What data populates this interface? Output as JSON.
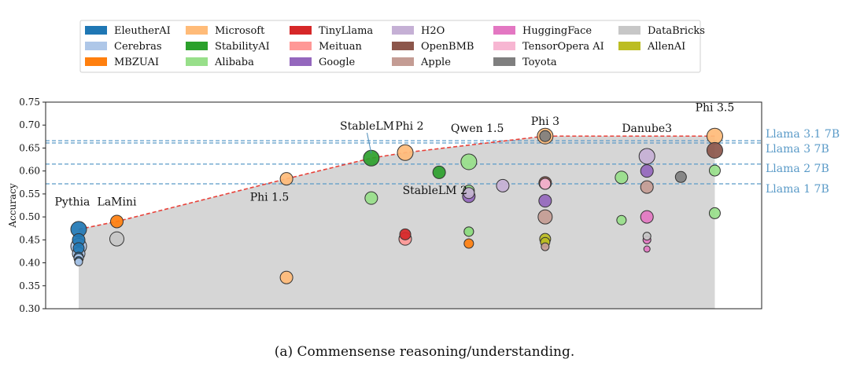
{
  "caption": "(a) Commensense reasoning/understanding.",
  "legend": [
    {
      "name": "EleutherAI",
      "color": "#1f77b4"
    },
    {
      "name": "Cerebras",
      "color": "#aec7e8"
    },
    {
      "name": "MBZUAI",
      "color": "#ff7f0e"
    },
    {
      "name": "Microsoft",
      "color": "#ffbb78"
    },
    {
      "name": "StabilityAI",
      "color": "#2ca02c"
    },
    {
      "name": "Alibaba",
      "color": "#98df8a"
    },
    {
      "name": "TinyLlama",
      "color": "#d62728"
    },
    {
      "name": "Meituan",
      "color": "#ff9896"
    },
    {
      "name": "Google",
      "color": "#9467bd"
    },
    {
      "name": "H2O",
      "color": "#c5b0d5"
    },
    {
      "name": "OpenBMB",
      "color": "#8c564b"
    },
    {
      "name": "Apple",
      "color": "#c49c94"
    },
    {
      "name": "HuggingFace",
      "color": "#e377c2"
    },
    {
      "name": "TensorOpera AI",
      "color": "#f7b6d2"
    },
    {
      "name": "Toyota",
      "color": "#7f7f7f"
    },
    {
      "name": "DataBricks",
      "color": "#c7c7c7"
    },
    {
      "name": "AllenAI",
      "color": "#bcbd22"
    }
  ],
  "chart_data": {
    "type": "scatter",
    "title": "",
    "xlabel": "",
    "ylabel": "Accuracy",
    "ylim": [
      0.3,
      0.75
    ],
    "yticks": [
      "0.30",
      "0.35",
      "0.40",
      "0.45",
      "0.50",
      "0.55",
      "0.60",
      "0.65",
      "0.70",
      "0.75"
    ],
    "xlim": [
      0,
      15.4
    ],
    "xticks_visible": false,
    "grid": false,
    "legend_position": "top",
    "frontier": {
      "color": "#e8423a",
      "points": [
        [
          0,
          0.473
        ],
        [
          0.9,
          0.49
        ],
        [
          4.9,
          0.583
        ],
        [
          6.9,
          0.628
        ],
        [
          7.7,
          0.64
        ],
        [
          11.0,
          0.676
        ],
        [
          15.0,
          0.676
        ]
      ]
    },
    "reference_lines": [
      {
        "label": "Llama 3.1 7B",
        "y": 0.666
      },
      {
        "label": "Llama 3 7B",
        "y": 0.661
      },
      {
        "label": "Llama 2 7B",
        "y": 0.615
      },
      {
        "label": "Llama 1 7B",
        "y": 0.572
      }
    ],
    "reference_color": "#5b9bc8",
    "annotations": [
      {
        "text": "Pythia",
        "x": -0.15,
        "y": 0.525
      },
      {
        "text": "LaMini",
        "x": 0.9,
        "y": 0.525
      },
      {
        "text": "Phi 1.5",
        "x": 4.5,
        "y": 0.535
      },
      {
        "text": "StableLM",
        "x": 6.8,
        "y": 0.69
      },
      {
        "text": "Phi 2",
        "x": 7.8,
        "y": 0.69
      },
      {
        "text": "Qwen 1.5",
        "x": 9.4,
        "y": 0.685
      },
      {
        "text": "StableLM 2",
        "x": 8.4,
        "y": 0.55
      },
      {
        "text": "Phi 3",
        "x": 11.0,
        "y": 0.7
      },
      {
        "text": "Danube3",
        "x": 13.4,
        "y": 0.685
      },
      {
        "text": "Phi 3.5",
        "x": 15.0,
        "y": 0.73
      }
    ],
    "points": [
      {
        "org": "Microsoft",
        "x": 4.9,
        "y": 0.583,
        "size": 8
      },
      {
        "org": "Microsoft",
        "x": 4.9,
        "y": 0.368,
        "size": 8
      },
      {
        "org": "Microsoft",
        "x": 7.7,
        "y": 0.64,
        "size": 10
      },
      {
        "org": "Microsoft",
        "x": 11.0,
        "y": 0.676,
        "size": 10
      },
      {
        "org": "Microsoft",
        "x": 15.0,
        "y": 0.676,
        "size": 10
      },
      {
        "org": "EleutherAI",
        "x": 0,
        "y": 0.405,
        "size": 5
      },
      {
        "org": "EleutherAI",
        "x": 0,
        "y": 0.413,
        "size": 6
      },
      {
        "org": "EleutherAI",
        "x": 0,
        "y": 0.432,
        "size": 7
      },
      {
        "org": "EleutherAI",
        "x": 0,
        "y": 0.45,
        "size": 8
      },
      {
        "org": "EleutherAI",
        "x": 0,
        "y": 0.473,
        "size": 10
      },
      {
        "org": "Cerebras",
        "x": 0,
        "y": 0.402,
        "size": 5
      },
      {
        "org": "Cerebras",
        "x": 0,
        "y": 0.41,
        "size": 6
      },
      {
        "org": "Cerebras",
        "x": 0,
        "y": 0.42,
        "size": 8
      },
      {
        "org": "Cerebras",
        "x": 0,
        "y": 0.436,
        "size": 10
      },
      {
        "org": "MBZUAI",
        "x": 0.9,
        "y": 0.49,
        "size": 8
      },
      {
        "org": "MBZUAI",
        "x": 9.2,
        "y": 0.442,
        "size": 6
      },
      {
        "org": "DataBricks",
        "x": 0.9,
        "y": 0.452,
        "size": 9
      },
      {
        "org": "StabilityAI",
        "x": 6.9,
        "y": 0.628,
        "size": 10
      },
      {
        "org": "StabilityAI",
        "x": 8.5,
        "y": 0.597,
        "size": 8
      },
      {
        "org": "StabilityAI",
        "x": 9.2,
        "y": 0.468,
        "size": 6
      },
      {
        "org": "Alibaba",
        "x": 6.9,
        "y": 0.541,
        "size": 8
      },
      {
        "org": "Alibaba",
        "x": 9.2,
        "y": 0.62,
        "size": 10
      },
      {
        "org": "Alibaba",
        "x": 9.2,
        "y": 0.557,
        "size": 7
      },
      {
        "org": "Alibaba",
        "x": 9.2,
        "y": 0.468,
        "size": 6
      },
      {
        "org": "Alibaba",
        "x": 12.8,
        "y": 0.586,
        "size": 8
      },
      {
        "org": "Alibaba",
        "x": 12.8,
        "y": 0.493,
        "size": 6
      },
      {
        "org": "Alibaba",
        "x": 15.0,
        "y": 0.601,
        "size": 7
      },
      {
        "org": "Alibaba",
        "x": 15.0,
        "y": 0.508,
        "size": 7
      },
      {
        "org": "TinyLlama",
        "x": 7.7,
        "y": 0.462,
        "size": 7
      },
      {
        "org": "Meituan",
        "x": 7.7,
        "y": 0.452,
        "size": 8
      },
      {
        "org": "Google",
        "x": 9.2,
        "y": 0.545,
        "size": 8
      },
      {
        "org": "Google",
        "x": 11.0,
        "y": 0.535,
        "size": 8
      },
      {
        "org": "Google",
        "x": 13.4,
        "y": 0.6,
        "size": 8
      },
      {
        "org": "H2O",
        "x": 9.2,
        "y": 0.552,
        "size": 7
      },
      {
        "org": "H2O",
        "x": 10.0,
        "y": 0.568,
        "size": 8
      },
      {
        "org": "H2O",
        "x": 13.4,
        "y": 0.632,
        "size": 10
      },
      {
        "org": "OpenBMB",
        "x": 11.0,
        "y": 0.574,
        "size": 8
      },
      {
        "org": "OpenBMB",
        "x": 15.0,
        "y": 0.645,
        "size": 10
      },
      {
        "org": "Apple",
        "x": 11.0,
        "y": 0.5,
        "size": 9
      },
      {
        "org": "Apple",
        "x": 11.0,
        "y": 0.435,
        "size": 5
      },
      {
        "org": "Apple",
        "x": 13.4,
        "y": 0.565,
        "size": 8
      },
      {
        "org": "HuggingFace",
        "x": 13.4,
        "y": 0.5,
        "size": 8
      },
      {
        "org": "HuggingFace",
        "x": 13.4,
        "y": 0.45,
        "size": 5
      },
      {
        "org": "HuggingFace",
        "x": 13.4,
        "y": 0.43,
        "size": 4
      },
      {
        "org": "TensorOpera AI",
        "x": 11.0,
        "y": 0.572,
        "size": 7
      },
      {
        "org": "Toyota",
        "x": 14.2,
        "y": 0.587,
        "size": 7
      },
      {
        "org": "Toyota",
        "x": 11.0,
        "y": 0.676,
        "size": 7
      },
      {
        "org": "DataBricks",
        "x": 13.4,
        "y": 0.458,
        "size": 5
      },
      {
        "org": "AllenAI",
        "x": 11.0,
        "y": 0.452,
        "size": 7
      },
      {
        "org": "AllenAI",
        "x": 11.0,
        "y": 0.445,
        "size": 6
      }
    ]
  }
}
